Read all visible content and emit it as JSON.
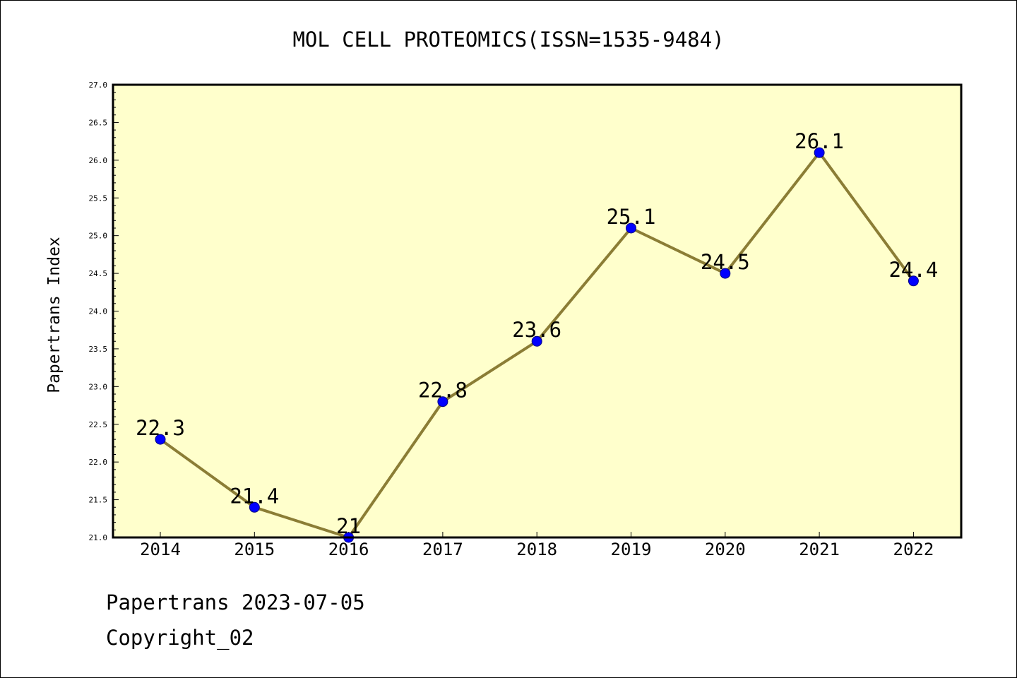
{
  "colors": {
    "plot_background": "#ffffcc",
    "line": "#8b7d35",
    "marker_fill": "#0000ff",
    "marker_edge": "#000080",
    "text": "#000000"
  },
  "footer": {
    "date_line": "Papertrans 2023-07-05",
    "copyright_line": "Copyright_02"
  },
  "chart_data": {
    "type": "line",
    "title": "MOL CELL PROTEOMICS(ISSN=1535-9484)",
    "xlabel": "",
    "ylabel": "Papertrans Index",
    "categories": [
      "2014",
      "2015",
      "2016",
      "2017",
      "2018",
      "2019",
      "2020",
      "2021",
      "2022"
    ],
    "series": [
      {
        "values": [
          22.3,
          21.4,
          21.0,
          22.8,
          23.6,
          25.1,
          24.5,
          26.1,
          24.4
        ],
        "data_labels": [
          "22.3",
          "21.4",
          "21",
          "22.8",
          "23.6",
          "25.1",
          "24.5",
          "26.1",
          "24.4"
        ]
      }
    ],
    "ylim": [
      21.0,
      27.0
    ],
    "y_major_ticks": [
      "21.0",
      "21.5",
      "22.0",
      "22.5",
      "23.0",
      "23.5",
      "24.0",
      "24.5",
      "25.0",
      "25.5",
      "26.0",
      "26.5",
      "27.0"
    ],
    "y_minor_step": 0.1,
    "grid": false,
    "legend": "none"
  }
}
